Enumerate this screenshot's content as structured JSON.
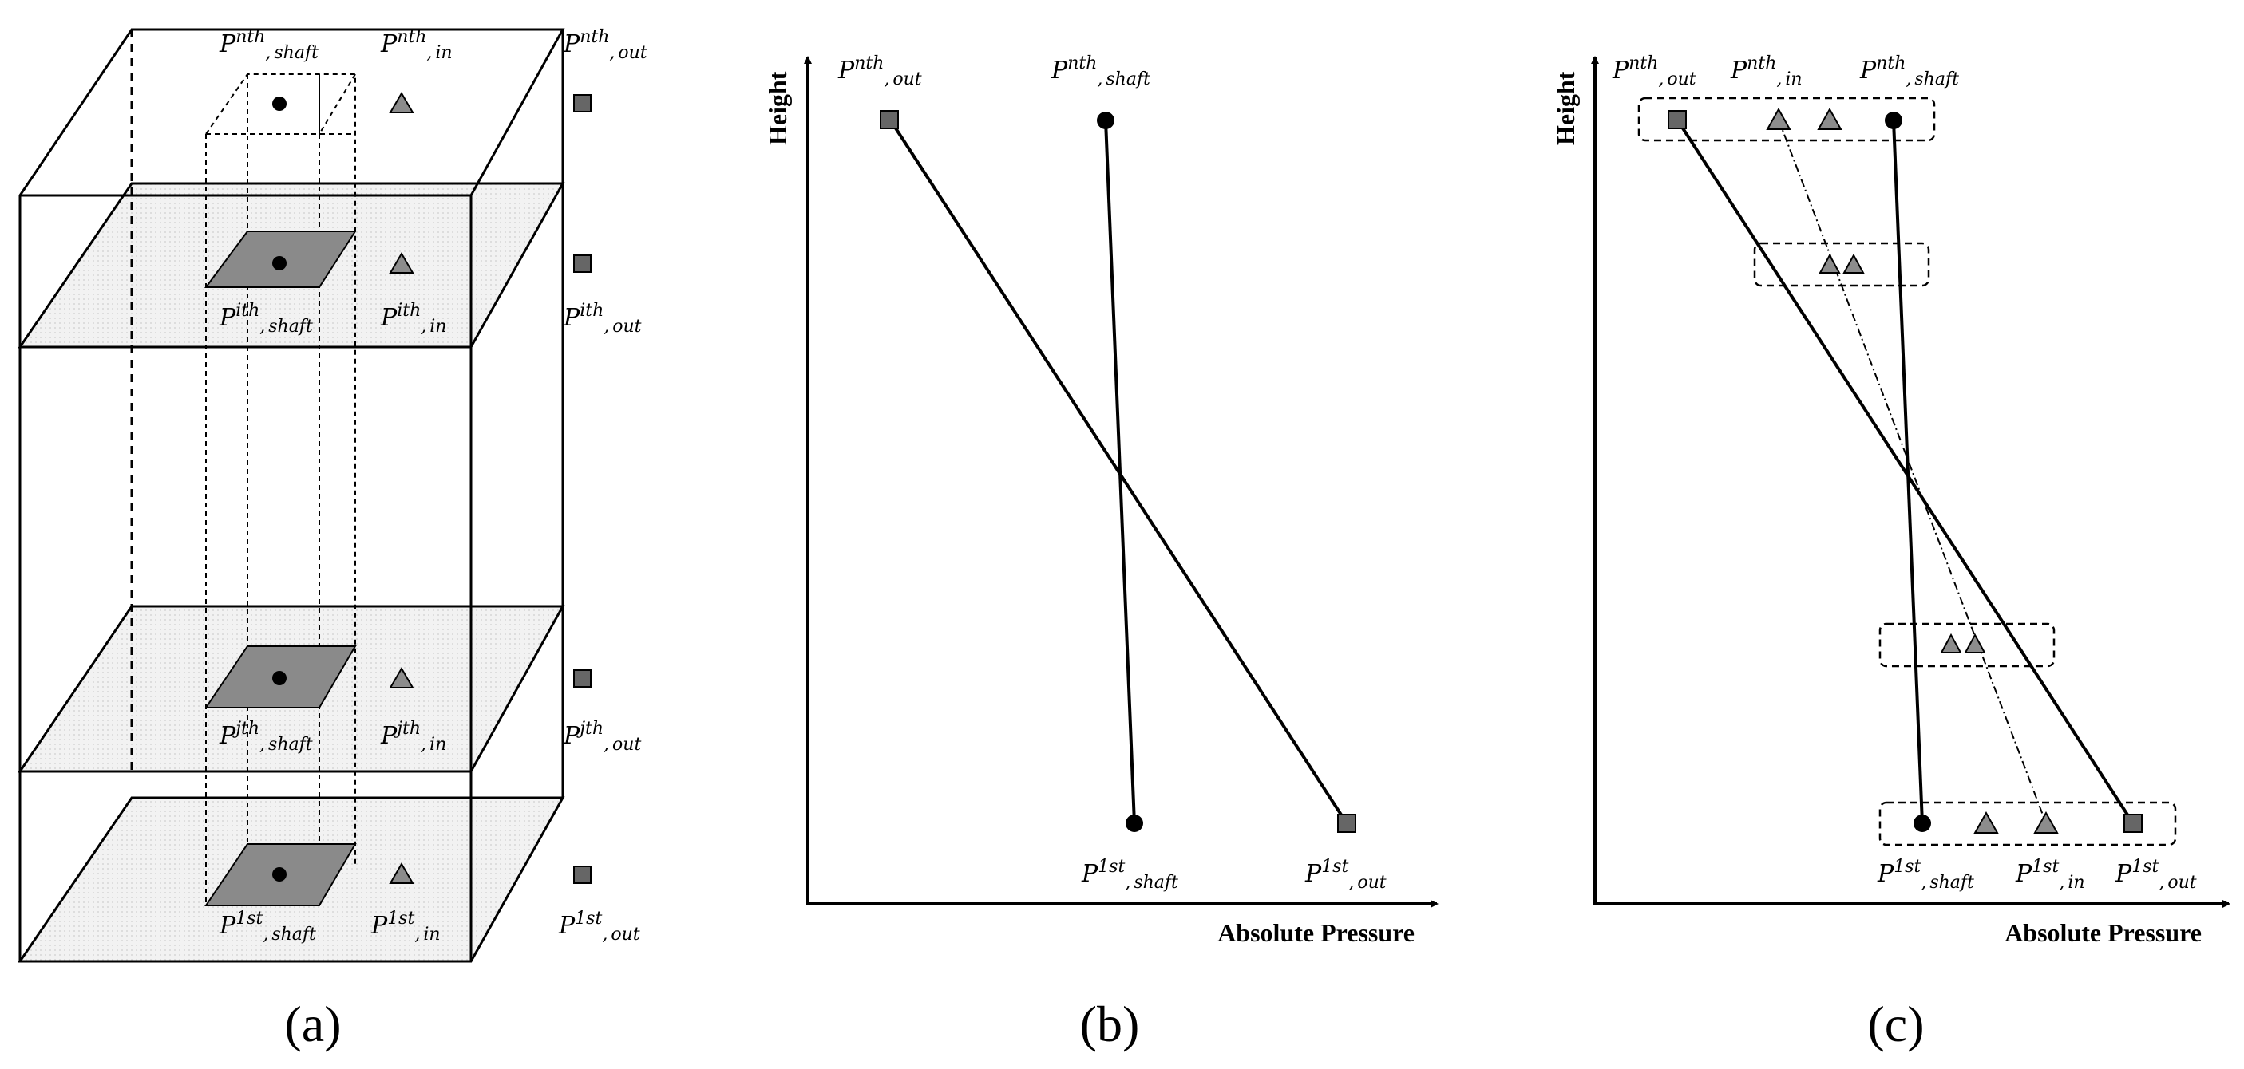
{
  "symbols": {
    "P": "P",
    "comma": ","
  },
  "labels": {
    "n_shaft": {
      "sup": "nth",
      "sub": "shaft"
    },
    "n_in": {
      "sup": "nth",
      "sub": "in"
    },
    "n_out": {
      "sup": "nth",
      "sub": "out"
    },
    "i_shaft": {
      "sup": "ith",
      "sub": "shaft"
    },
    "i_in": {
      "sup": "ith",
      "sub": "in"
    },
    "i_out": {
      "sup": "ith",
      "sub": "out"
    },
    "j_shaft": {
      "sup": "jth",
      "sub": "shaft"
    },
    "j_in": {
      "sup": "jth",
      "sub": "in"
    },
    "j_out": {
      "sup": "jth",
      "sub": "out"
    },
    "first_shaft": {
      "sup": "1st",
      "sub": "shaft"
    },
    "first_in": {
      "sup": "1st",
      "sub": "in"
    },
    "first_out": {
      "sup": "1st",
      "sub": "out"
    }
  },
  "axes": {
    "ylabel": "Height",
    "xlabel": "Absolute Pressure"
  },
  "panels": {
    "a": "(a)",
    "b": "(b)",
    "c": "(c)"
  },
  "colors": {
    "line": "#000000",
    "floor_fill": "#f0f0f0",
    "shaft_fill": "#8a8a8a",
    "marker_fill": "#8c8c8c",
    "marker_square": "#666666"
  },
  "markers": {
    "shaft": "circle",
    "in": "triangle",
    "out": "square"
  }
}
